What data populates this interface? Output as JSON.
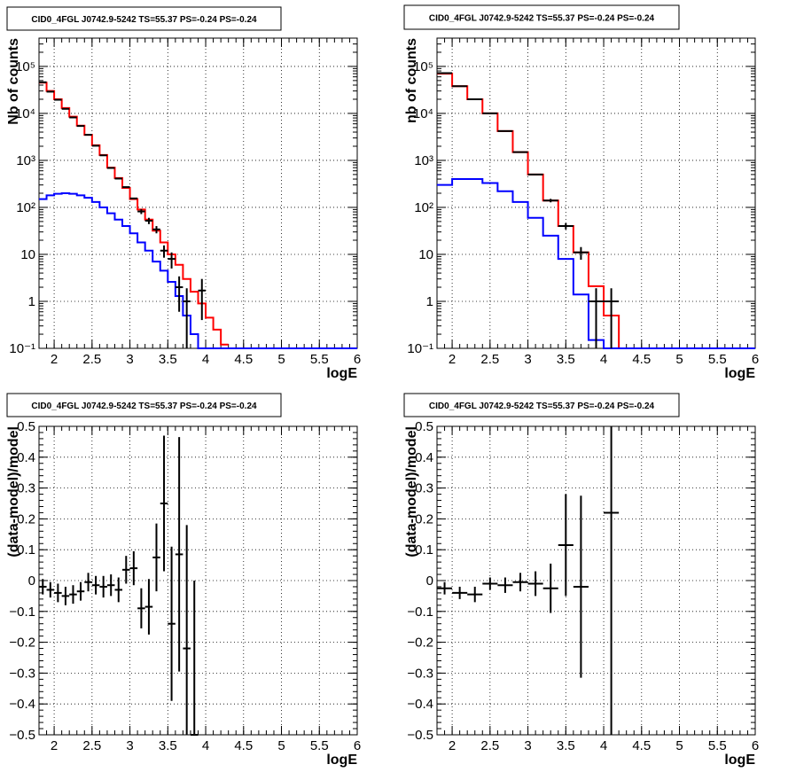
{
  "chart_data": [
    {
      "type": "line",
      "title": "CID0_4FGL J0742.9-5242 TS=55.37 PS=-0.24 PS=-0.24",
      "xlabel": "logE",
      "ylabel": "Nb of counts",
      "log_y": true,
      "xlim": [
        1.8,
        6.0
      ],
      "ylim": [
        0.1,
        400000
      ],
      "grid": true,
      "x_ticks": [
        "2",
        "2.5",
        "3",
        "3.5",
        "4",
        "4.5",
        "5",
        "5.5",
        "6"
      ],
      "y_ticks": [
        "10⁻¹",
        "1",
        "10",
        "10²",
        "10³",
        "10⁴",
        "10⁵"
      ],
      "series": [
        {
          "color": "#ff0000",
          "style": "step",
          "edges": [
            1.8,
            1.9,
            2.0,
            2.1,
            2.2,
            2.3,
            2.4,
            2.5,
            2.6,
            2.7,
            2.8,
            2.9,
            3.0,
            3.1,
            3.2,
            3.3,
            3.4,
            3.5,
            3.6,
            3.7,
            3.8,
            3.9,
            4.0,
            4.1,
            4.2,
            4.3
          ],
          "values": [
            45000,
            30000,
            20000,
            13000,
            8500,
            5500,
            3500,
            2100,
            1300,
            700,
            420,
            260,
            150,
            90,
            55,
            32,
            18,
            10,
            6,
            3,
            1.6,
            0.9,
            0.45,
            0.25,
            0.12
          ]
        },
        {
          "color": "#0000ff",
          "style": "step",
          "edges": [
            1.8,
            1.9,
            2.0,
            2.1,
            2.2,
            2.3,
            2.4,
            2.5,
            2.6,
            2.7,
            2.8,
            2.9,
            3.0,
            3.1,
            3.2,
            3.3,
            3.4,
            3.5,
            3.6,
            3.7,
            3.8,
            3.9,
            4.0,
            4.1,
            4.2,
            4.3,
            4.4,
            4.5,
            4.6,
            4.7,
            4.8,
            4.9,
            5.0,
            5.1,
            5.2,
            5.3,
            5.4,
            5.5,
            5.6,
            5.7,
            5.8,
            5.9,
            6.0
          ],
          "values": [
            150,
            180,
            195,
            200,
            195,
            180,
            160,
            130,
            100,
            75,
            55,
            40,
            28,
            18,
            12,
            7,
            4.5,
            2.6,
            1.3,
            0.5,
            0.2,
            0.1,
            0.1,
            0.1,
            0.1,
            0.1,
            0.1,
            0.1,
            0.1,
            0.1,
            0.1,
            0.1,
            0.1,
            0.1,
            0.1,
            0.1,
            0.1,
            0.1,
            0.1,
            0.1,
            0.1,
            0.1
          ]
        }
      ],
      "points": [
        {
          "x": 1.85,
          "y": 46000
        },
        {
          "x": 1.95,
          "y": 29000
        },
        {
          "x": 2.05,
          "y": 19500
        },
        {
          "x": 2.15,
          "y": 12500
        },
        {
          "x": 2.25,
          "y": 8200
        },
        {
          "x": 2.35,
          "y": 5400
        },
        {
          "x": 2.45,
          "y": 3500
        },
        {
          "x": 2.55,
          "y": 2050
        },
        {
          "x": 2.65,
          "y": 1280
        },
        {
          "x": 2.75,
          "y": 690
        },
        {
          "x": 2.85,
          "y": 410
        },
        {
          "x": 2.95,
          "y": 270
        },
        {
          "x": 3.05,
          "y": 155
        },
        {
          "x": 3.15,
          "y": 82,
          "err": 10
        },
        {
          "x": 3.25,
          "y": 52,
          "err": 8
        },
        {
          "x": 3.35,
          "y": 34,
          "err": 6
        },
        {
          "x": 3.45,
          "y": 12,
          "err": 3.5
        },
        {
          "x": 3.55,
          "y": 8,
          "err": 3
        },
        {
          "x": 3.65,
          "y": 2,
          "err": 1.4
        },
        {
          "x": 3.75,
          "y": 1,
          "err": 0.9
        },
        {
          "x": 3.95,
          "y": 1.7,
          "err": 1.3
        }
      ]
    },
    {
      "type": "line",
      "title": "CID0_4FGL J0742.9-5242 TS=55.37 PS=-0.24 PS=-0.24",
      "xlabel": "logE",
      "ylabel": "nb of counts",
      "log_y": true,
      "xlim": [
        1.8,
        6.0
      ],
      "ylim": [
        0.1,
        400000
      ],
      "grid": true,
      "x_ticks": [
        "2",
        "2.5",
        "3",
        "3.5",
        "4",
        "4.5",
        "5",
        "5.5",
        "6"
      ],
      "y_ticks": [
        "10⁻¹",
        "1",
        "10",
        "10²",
        "10³",
        "10⁴",
        "10⁵"
      ],
      "series": [
        {
          "color": "#ff0000",
          "style": "step",
          "edges": [
            1.8,
            2.0,
            2.2,
            2.4,
            2.6,
            2.8,
            3.0,
            3.2,
            3.4,
            3.6,
            3.8,
            4.0,
            4.2,
            4.4
          ],
          "values": [
            70000,
            38000,
            20000,
            10000,
            4200,
            1500,
            500,
            140,
            40,
            11,
            2.1,
            0.5,
            0.1
          ]
        },
        {
          "color": "#0000ff",
          "style": "step",
          "edges": [
            1.8,
            2.0,
            2.2,
            2.4,
            2.6,
            2.8,
            3.0,
            3.2,
            3.4,
            3.6,
            3.8,
            4.0,
            4.2,
            4.4,
            4.6,
            4.8,
            5.0,
            5.2,
            5.4,
            5.6,
            5.8,
            6.0
          ],
          "values": [
            300,
            400,
            400,
            330,
            220,
            130,
            60,
            25,
            8,
            1.4,
            0.15,
            0.1,
            0.1,
            0.1,
            0.1,
            0.1,
            0.1,
            0.1,
            0.1,
            0.1,
            0.1
          ]
        }
      ],
      "points": [
        {
          "x": 1.9,
          "y": 72000
        },
        {
          "x": 2.1,
          "y": 38000
        },
        {
          "x": 2.3,
          "y": 20000
        },
        {
          "x": 2.5,
          "y": 10000
        },
        {
          "x": 2.7,
          "y": 4200
        },
        {
          "x": 2.9,
          "y": 1500
        },
        {
          "x": 3.1,
          "y": 500
        },
        {
          "x": 3.3,
          "y": 140,
          "err": 12
        },
        {
          "x": 3.5,
          "y": 40,
          "err": 6
        },
        {
          "x": 3.7,
          "y": 11,
          "err": 3.3
        },
        {
          "x": 3.9,
          "y": 1,
          "err": 0.9
        },
        {
          "x": 4.1,
          "y": 1,
          "err": 0.9
        }
      ]
    },
    {
      "type": "scatter",
      "title": "CID0_4FGL J0742.9-5242 TS=55.37 PS=-0.24 PS=-0.24",
      "xlabel": "logE",
      "ylabel": "(data-model)/model",
      "xlim": [
        1.8,
        6.0
      ],
      "ylim": [
        -0.5,
        0.5
      ],
      "grid": true,
      "x_ticks": [
        "2",
        "2.5",
        "3",
        "3.5",
        "4",
        "4.5",
        "5",
        "5.5",
        "6"
      ],
      "y_ticks": [
        "−0.5",
        "−0.4",
        "−0.3",
        "−0.2",
        "−0.1",
        "0",
        "0.1",
        "0.2",
        "0.3",
        "0.4",
        "0.5"
      ],
      "points": [
        {
          "x": 1.85,
          "y": -0.02,
          "err": 0.025
        },
        {
          "x": 1.95,
          "y": -0.03,
          "err": 0.025
        },
        {
          "x": 2.05,
          "y": -0.04,
          "err": 0.03
        },
        {
          "x": 2.15,
          "y": -0.05,
          "err": 0.03
        },
        {
          "x": 2.25,
          "y": -0.045,
          "err": 0.03
        },
        {
          "x": 2.35,
          "y": -0.035,
          "err": 0.03
        },
        {
          "x": 2.45,
          "y": -0.005,
          "err": 0.03
        },
        {
          "x": 2.55,
          "y": -0.015,
          "err": 0.03
        },
        {
          "x": 2.65,
          "y": -0.02,
          "err": 0.035
        },
        {
          "x": 2.75,
          "y": -0.015,
          "err": 0.035
        },
        {
          "x": 2.85,
          "y": -0.03,
          "err": 0.04
        },
        {
          "x": 2.95,
          "y": 0.035,
          "err": 0.045
        },
        {
          "x": 3.05,
          "y": 0.04,
          "err": 0.055
        },
        {
          "x": 3.15,
          "y": -0.09,
          "err": 0.065
        },
        {
          "x": 3.25,
          "y": -0.085,
          "err": 0.09
        },
        {
          "x": 3.35,
          "y": 0.075,
          "err": 0.11
        },
        {
          "x": 3.45,
          "y": 0.25,
          "err": 0.22
        },
        {
          "x": 3.55,
          "y": -0.14,
          "err": 0.25
        },
        {
          "x": 3.65,
          "y": 0.085,
          "err": 0.38
        },
        {
          "x": 3.75,
          "y": -0.22,
          "err": 0.4
        },
        {
          "x": 3.85,
          "y": -0.5,
          "err": 0.5
        }
      ]
    },
    {
      "type": "scatter",
      "title": "CID0_4FGL J0742.9-5242 TS=55.37 PS=-0.24 PS=-0.24",
      "xlabel": "logE",
      "ylabel": "(data-model)/model",
      "xlim": [
        1.8,
        6.0
      ],
      "ylim": [
        -0.5,
        0.5
      ],
      "grid": true,
      "x_ticks": [
        "2",
        "2.5",
        "3",
        "3.5",
        "4",
        "4.5",
        "5",
        "5.5",
        "6"
      ],
      "y_ticks": [
        "−0.5",
        "−0.4",
        "−0.3",
        "−0.2",
        "−0.1",
        "0",
        "0.1",
        "0.2",
        "0.3",
        "0.4",
        "0.5"
      ],
      "points": [
        {
          "x": 1.9,
          "y": -0.025,
          "err": 0.02
        },
        {
          "x": 2.1,
          "y": -0.04,
          "err": 0.02
        },
        {
          "x": 2.3,
          "y": -0.045,
          "err": 0.025
        },
        {
          "x": 2.5,
          "y": -0.01,
          "err": 0.02
        },
        {
          "x": 2.7,
          "y": -0.015,
          "err": 0.025
        },
        {
          "x": 2.9,
          "y": -0.005,
          "err": 0.03
        },
        {
          "x": 3.1,
          "y": -0.01,
          "err": 0.04
        },
        {
          "x": 3.3,
          "y": -0.025,
          "err": 0.08
        },
        {
          "x": 3.5,
          "y": 0.115,
          "err": 0.165
        },
        {
          "x": 3.7,
          "y": -0.02,
          "err": 0.295
        },
        {
          "x": 4.1,
          "y": 0.22,
          "err": 0.72
        }
      ]
    }
  ]
}
